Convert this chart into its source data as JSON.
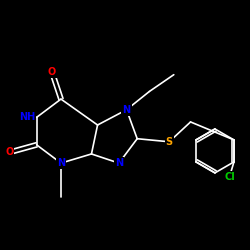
{
  "bg_color": "#000000",
  "bond_color": "#ffffff",
  "atom_colors": {
    "O": "#ff0000",
    "N": "#0000ff",
    "S": "#ffa500",
    "Cl": "#00cc00",
    "NH": "#0000ff"
  },
  "bond_width": 1.2,
  "font_size": 7.0,
  "figsize": [
    2.5,
    2.5
  ],
  "dpi": 100
}
